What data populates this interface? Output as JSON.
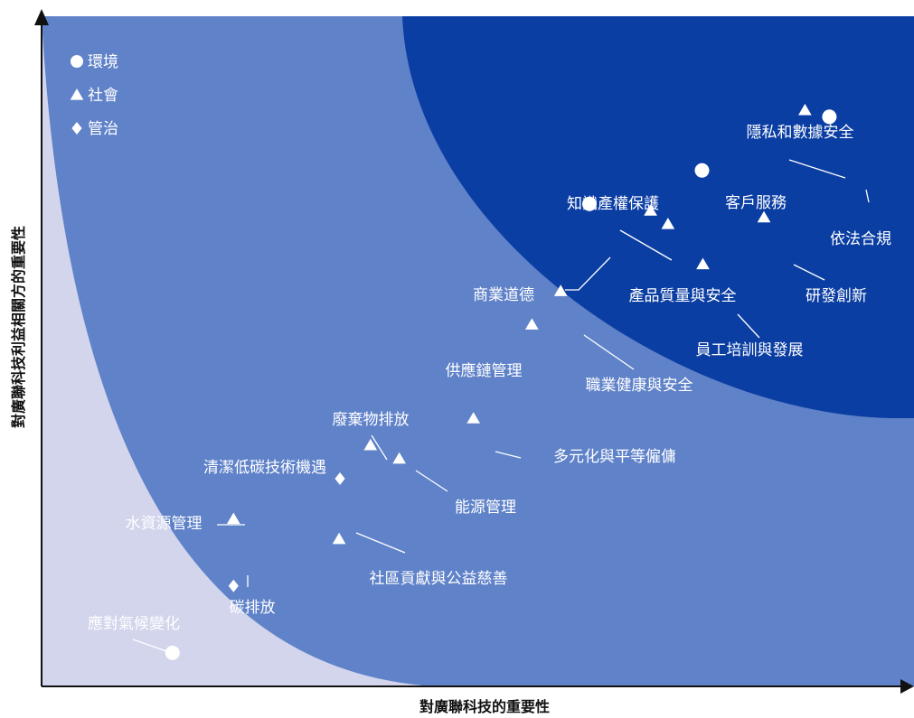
{
  "chart_data": {
    "type": "scatter",
    "xlabel": "對廣聯科技的重要性",
    "ylabel": "對廣聯科技利益相關方的重要性",
    "colors": {
      "inner_zone": "#d2d5ec",
      "middle_zone": "#5f82c9",
      "outer_zone": "#0b3ea3",
      "marker": "#ffffff",
      "axis": "#111111"
    },
    "legend": {
      "position": "top-left",
      "items": [
        {
          "shape": "circle",
          "label": "環境"
        },
        {
          "shape": "triangle",
          "label": "社會"
        },
        {
          "shape": "diamond",
          "label": "管治"
        }
      ]
    },
    "points": [
      {
        "label": "隱私和數據安全",
        "category": "社會",
        "shape": "triangle",
        "x": 0.875,
        "y": 0.86
      },
      {
        "label": "依法合規",
        "category": "環境",
        "shape": "circle",
        "x": 0.903,
        "y": 0.85
      },
      {
        "label": "客戶服務",
        "category": "環境",
        "shape": "circle",
        "x": 0.757,
        "y": 0.77
      },
      {
        "label": "知識產權保護",
        "category": "社會",
        "shape": "triangle",
        "x": 0.698,
        "y": 0.71
      },
      {
        "label": "產品質量與安全",
        "category": "社會",
        "shape": "triangle",
        "x": 0.718,
        "y": 0.69
      },
      {
        "label": "研發創新",
        "category": "社會",
        "shape": "triangle",
        "x": 0.828,
        "y": 0.7
      },
      {
        "label": "商業道德",
        "category": "環境",
        "shape": "circle",
        "x": 0.628,
        "y": 0.72
      },
      {
        "label": "員工培訓與發展",
        "category": "社會",
        "shape": "triangle",
        "x": 0.758,
        "y": 0.63
      },
      {
        "label": "職業健康與安全",
        "category": "社會",
        "shape": "triangle",
        "x": 0.595,
        "y": 0.59
      },
      {
        "label": "供應鏈管理",
        "category": "社會",
        "shape": "triangle",
        "x": 0.562,
        "y": 0.54
      },
      {
        "label": "多元化與平等僱傭",
        "category": "社會",
        "shape": "triangle",
        "x": 0.495,
        "y": 0.4
      },
      {
        "label": "廢棄物排放",
        "category": "社會",
        "shape": "triangle",
        "x": 0.377,
        "y": 0.36
      },
      {
        "label": "能源管理",
        "category": "社會",
        "shape": "triangle",
        "x": 0.41,
        "y": 0.34
      },
      {
        "label": "清潔低碳技術機遇",
        "category": "管治",
        "shape": "diamond",
        "x": 0.342,
        "y": 0.31
      },
      {
        "label": "水資源管理",
        "category": "社會",
        "shape": "triangle",
        "x": 0.22,
        "y": 0.25
      },
      {
        "label": "社區貢獻與公益慈善",
        "category": "社會",
        "shape": "triangle",
        "x": 0.341,
        "y": 0.22
      },
      {
        "label": "碳排放",
        "category": "管治",
        "shape": "diamond",
        "x": 0.22,
        "y": 0.15
      },
      {
        "label": "應對氣候變化",
        "category": "環境",
        "shape": "circle",
        "x": 0.15,
        "y": 0.05
      }
    ]
  }
}
